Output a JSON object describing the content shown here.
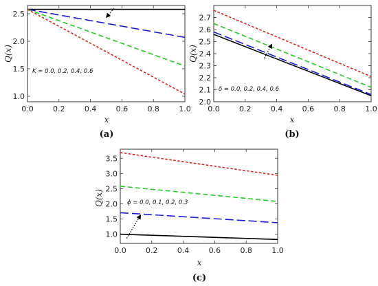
{
  "chart_data": [
    {
      "type": "line",
      "panel_label": "(a)",
      "xlabel": "x",
      "ylabel": "Q(x)",
      "xlim": [
        0,
        1
      ],
      "ylim": [
        0.9,
        2.65
      ],
      "xticks": [
        "0.0",
        "0.2",
        "0.4",
        "0.6",
        "0.8",
        "1.0"
      ],
      "xtick_values": [
        0,
        0.2,
        0.4,
        0.6,
        0.8,
        1.0
      ],
      "yticks": [
        "1.0",
        "1.5",
        "2.0",
        "2.5"
      ],
      "ytick_values": [
        1.0,
        1.5,
        2.0,
        2.5
      ],
      "annotation": "K = 0.0, 0.2, 0.4, 0.6",
      "series": [
        {
          "style": "solid",
          "color": "#000000",
          "x": [
            0,
            1
          ],
          "y": [
            2.58,
            2.58
          ]
        },
        {
          "style": "long-dash",
          "color": "#1a1adb",
          "x": [
            0,
            1
          ],
          "y": [
            2.58,
            2.07
          ]
        },
        {
          "style": "dash",
          "color": "#22cc22",
          "x": [
            0,
            1
          ],
          "y": [
            2.58,
            1.55
          ]
        },
        {
          "style": "short-dash",
          "color": "#e01f1f",
          "x": [
            0,
            1
          ],
          "y": [
            2.58,
            1.04
          ]
        }
      ],
      "arrow": {
        "from": [
          0.55,
          2.6
        ],
        "to": [
          0.5,
          2.43
        ]
      }
    },
    {
      "type": "line",
      "panel_label": "(b)",
      "xlabel": "x",
      "ylabel": "Q(x)",
      "xlim": [
        0,
        1
      ],
      "ylim": [
        2.0,
        2.8
      ],
      "xticks": [
        "0.0",
        "0.2",
        "0.4",
        "0.6",
        "0.8",
        "1.0"
      ],
      "xtick_values": [
        0,
        0.2,
        0.4,
        0.6,
        0.8,
        1.0
      ],
      "yticks": [
        "2.0",
        "2.1",
        "2.2",
        "2.3",
        "2.4",
        "2.5",
        "2.6",
        "2.7"
      ],
      "ytick_values": [
        2.0,
        2.1,
        2.2,
        2.3,
        2.4,
        2.5,
        2.6,
        2.7
      ],
      "annotation": "δ = 0.0, 0.2, 0.4, 0.6",
      "series": [
        {
          "style": "solid",
          "color": "#000000",
          "x": [
            0,
            1
          ],
          "y": [
            2.56,
            2.05
          ]
        },
        {
          "style": "long-dash",
          "color": "#1a1adb",
          "x": [
            0,
            1
          ],
          "y": [
            2.58,
            2.06
          ]
        },
        {
          "style": "dash",
          "color": "#22cc22",
          "x": [
            0,
            1
          ],
          "y": [
            2.65,
            2.12
          ]
        },
        {
          "style": "short-dash",
          "color": "#e01f1f",
          "x": [
            0,
            1
          ],
          "y": [
            2.76,
            2.21
          ]
        }
      ],
      "arrow": {
        "from": [
          0.32,
          2.36
        ],
        "to": [
          0.37,
          2.48
        ]
      }
    },
    {
      "type": "line",
      "panel_label": "(c)",
      "xlabel": "x",
      "ylabel": "Q(x)",
      "xlim": [
        0,
        1
      ],
      "ylim": [
        0.7,
        3.8
      ],
      "xticks": [
        "0.0",
        "0.2",
        "0.4",
        "0.6",
        "0.8",
        "1.0"
      ],
      "xtick_values": [
        0,
        0.2,
        0.4,
        0.6,
        0.8,
        1.0
      ],
      "yticks": [
        "1.0",
        "1.5",
        "2.0",
        "2.5",
        "3.0",
        "3.5"
      ],
      "ytick_values": [
        1.0,
        1.5,
        2.0,
        2.5,
        3.0,
        3.5
      ],
      "annotation": "ϕ = 0.0, 0.1, 0.2, 0.3",
      "series": [
        {
          "style": "solid",
          "color": "#000000",
          "x": [
            0,
            1
          ],
          "y": [
            1.0,
            0.83
          ]
        },
        {
          "style": "long-dash",
          "color": "#1a1adb",
          "x": [
            0,
            1
          ],
          "y": [
            1.71,
            1.38
          ]
        },
        {
          "style": "dash",
          "color": "#22cc22",
          "x": [
            0,
            1
          ],
          "y": [
            2.58,
            2.08
          ]
        },
        {
          "style": "short-dash",
          "color": "#e01f1f",
          "x": [
            0,
            1
          ],
          "y": [
            3.69,
            2.94
          ]
        }
      ],
      "arrow": {
        "from": [
          0.04,
          0.86
        ],
        "to": [
          0.13,
          1.64
        ]
      }
    }
  ]
}
